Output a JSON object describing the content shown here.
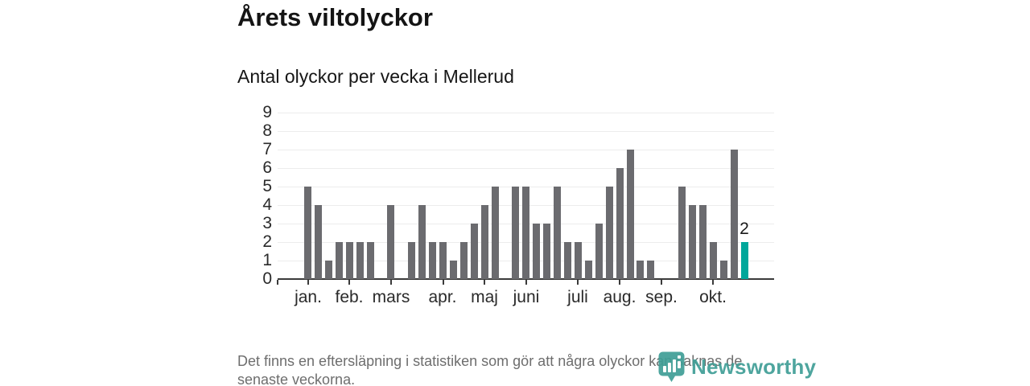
{
  "chart_data": {
    "type": "bar",
    "title": "Årets viltolyckor",
    "subtitle": "Antal olyckor per vecka i Mellerud",
    "x_unit": "vecka",
    "x_start_week": 1,
    "values": [
      5,
      4,
      1,
      2,
      2,
      2,
      2,
      0,
      4,
      0,
      2,
      4,
      2,
      2,
      1,
      2,
      3,
      4,
      5,
      0,
      5,
      5,
      3,
      3,
      5,
      2,
      2,
      1,
      3,
      5,
      6,
      7,
      1,
      1,
      0,
      0,
      5,
      4,
      4,
      2,
      1,
      7,
      2
    ],
    "highlight_last": true,
    "last_value_label": "2",
    "ylim": [
      0,
      9
    ],
    "yticks": [
      0,
      1,
      2,
      3,
      4,
      5,
      6,
      7,
      8,
      9
    ],
    "month_ticks": [
      {
        "label": "jan.",
        "week": 1
      },
      {
        "label": "feb.",
        "week": 5
      },
      {
        "label": "mars",
        "week": 9
      },
      {
        "label": "apr.",
        "week": 14
      },
      {
        "label": "maj",
        "week": 18
      },
      {
        "label": "juni",
        "week": 22
      },
      {
        "label": "juli",
        "week": 27
      },
      {
        "label": "aug.",
        "week": 31
      },
      {
        "label": "sep.",
        "week": 35
      },
      {
        "label": "okt.",
        "week": 40
      }
    ],
    "grid": true,
    "legend": false,
    "colors": {
      "bar": "#6b6b6f",
      "highlight": "#00a79b",
      "gridline": "#ececec",
      "axis": "#3b3b3b",
      "label": "#2a2a2a"
    }
  },
  "footer": {
    "lines": [
      "Det finns en eftersläpning i statistiken som gör att några olyckor kan saknas de",
      "senaste veckorna."
    ]
  },
  "logo": {
    "text": "Newsworthy",
    "icon": "newsworthy-pin-icon",
    "color": "#3f9e96"
  }
}
